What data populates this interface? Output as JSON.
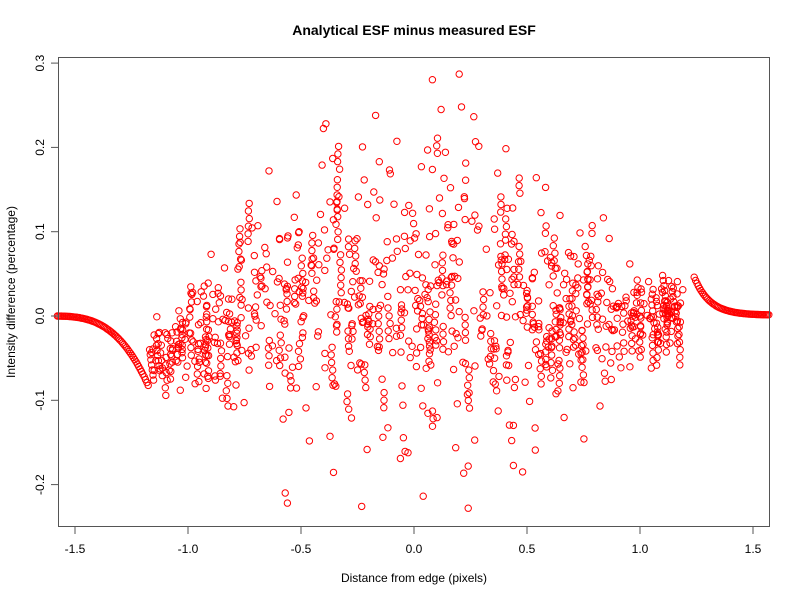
{
  "chart_data": {
    "type": "scatter",
    "title": "Analytical ESF minus measured ESF",
    "xlabel": "Distance from edge (pixels)",
    "ylabel": "Intensity difference (percentage)",
    "xlim": [
      -1.62,
      1.62
    ],
    "ylim": [
      -0.25,
      0.31
    ],
    "x_ticks": [
      -1.5,
      -1.0,
      -0.5,
      0.0,
      0.5,
      1.0,
      1.5
    ],
    "x_tick_labels": [
      "-1.5",
      "-1.0",
      "-0.5",
      "0.0",
      "0.5",
      "1.0",
      "1.5"
    ],
    "y_ticks": [
      -0.2,
      -0.1,
      0.0,
      0.1,
      0.2,
      0.3
    ],
    "y_tick_labels": [
      "-0.2",
      "-0.1",
      "0.0",
      "0.1",
      "0.2",
      "0.3"
    ],
    "grid": false,
    "legend": null,
    "marker": "open-circle",
    "color": "#ff0000",
    "series": [
      {
        "name": "left-edge-curve",
        "description": "smooth curve from ~0.0 at x=-1.62 descending to ~-0.08 at x=-1.18",
        "x": [
          -1.6,
          -1.5,
          -1.45,
          -1.4,
          -1.35,
          -1.3,
          -1.25,
          -1.2,
          -1.18
        ],
        "y": [
          0.0,
          -0.002,
          -0.005,
          -0.01,
          -0.018,
          -0.03,
          -0.048,
          -0.07,
          -0.08
        ]
      },
      {
        "name": "right-edge-curve",
        "description": "smooth curve from ~0.045 at x=1.24 descending to ~0.0 at x=1.62",
        "x": [
          1.24,
          1.28,
          1.32,
          1.36,
          1.4,
          1.45,
          1.5,
          1.55,
          1.6
        ],
        "y": [
          0.045,
          0.032,
          0.022,
          0.014,
          0.009,
          0.005,
          0.003,
          0.002,
          0.001
        ]
      },
      {
        "name": "scatter-core",
        "description": "dense scattered points between x=-1.17 and x=1.22; spread widest near x=0 (approx -0.23 to 0.29), narrowing toward edges",
        "notable_points": [
          {
            "x": 0.2,
            "y": 0.287
          },
          {
            "x": 0.21,
            "y": 0.248
          },
          {
            "x": 0.12,
            "y": 0.245
          },
          {
            "x": 0.24,
            "y": -0.228
          },
          {
            "x": -0.56,
            "y": -0.222
          },
          {
            "x": -0.57,
            "y": -0.21
          },
          {
            "x": 0.24,
            "y": -0.178
          },
          {
            "x": -0.39,
            "y": 0.228
          },
          {
            "x": -0.17,
            "y": 0.238
          }
        ]
      }
    ]
  }
}
